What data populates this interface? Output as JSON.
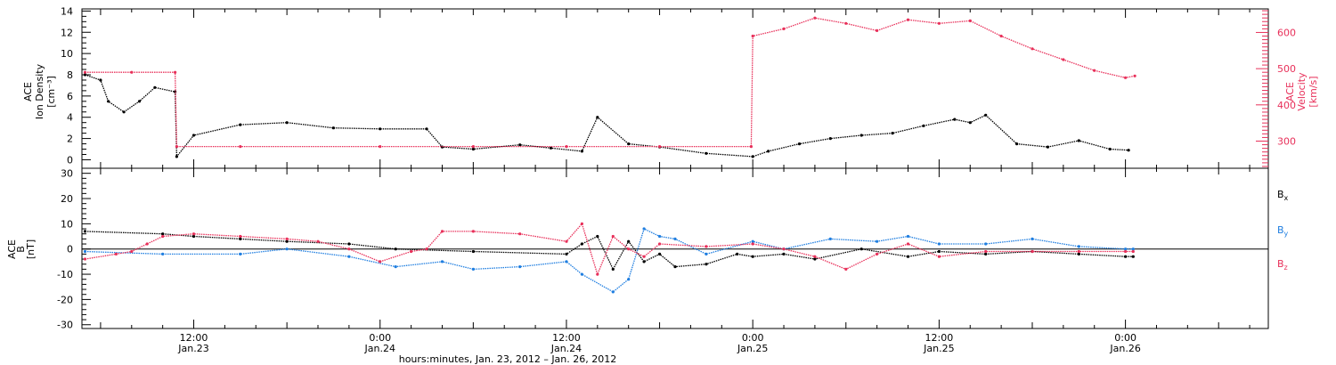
{
  "colors": {
    "black": "#000000",
    "red": "#e8305a",
    "blue": "#1f7ee0"
  },
  "xaxis": {
    "title": "hours:minutes, Jan. 23, 2012 – Jan. 26, 2012",
    "ticks": [
      {
        "t": 12,
        "time": "12:00",
        "date": "Jan.23"
      },
      {
        "t": 24,
        "time": "0:00",
        "date": "Jan.24"
      },
      {
        "t": 36,
        "time": "12:00",
        "date": "Jan.24"
      },
      {
        "t": 48,
        "time": "0:00",
        "date": "Jan.25"
      },
      {
        "t": 60,
        "time": "12:00",
        "date": "Jan.25"
      },
      {
        "t": 72,
        "time": "0:00",
        "date": "Jan.26"
      }
    ]
  },
  "chart_data": [
    {
      "type": "scatter",
      "ylabel_left": [
        "ACE",
        "Ion Density",
        "[cm⁻³]"
      ],
      "ylabel_right": [
        "ACE",
        "Velocity",
        "[km/s]"
      ],
      "xlim_hours": [
        4.8,
        81.2
      ],
      "ylim_left": [
        -0.8,
        14.2
      ],
      "ylim_right": [
        225,
        665
      ],
      "yticks_left": [
        0,
        2,
        4,
        6,
        8,
        10,
        12,
        14
      ],
      "yticks_right": [
        300,
        400,
        500,
        600
      ],
      "series": [
        {
          "quantity": "density",
          "color": "#000000",
          "axis": "left",
          "points": [
            [
              5,
              8
            ],
            [
              6,
              7.5
            ],
            [
              6.5,
              5.5
            ],
            [
              7.5,
              4.5
            ],
            [
              8.5,
              5.5
            ],
            [
              9.5,
              6.8
            ],
            [
              10.8,
              6.4
            ],
            [
              10.9,
              0.3
            ],
            [
              12,
              2.3
            ],
            [
              15,
              3.3
            ],
            [
              18,
              3.5
            ],
            [
              21,
              3.0
            ],
            [
              24,
              2.9
            ],
            [
              27,
              2.9
            ],
            [
              28,
              1.2
            ],
            [
              30,
              1.0
            ],
            [
              33,
              1.4
            ],
            [
              35,
              1.1
            ],
            [
              37,
              0.8
            ],
            [
              38,
              4.0
            ],
            [
              40,
              1.5
            ],
            [
              42,
              1.2
            ],
            [
              45,
              0.6
            ],
            [
              48,
              0.3
            ],
            [
              49,
              0.8
            ],
            [
              51,
              1.5
            ],
            [
              53,
              2.0
            ],
            [
              55,
              2.3
            ],
            [
              57,
              2.5
            ],
            [
              59,
              3.2
            ],
            [
              61,
              3.8
            ],
            [
              62,
              3.5
            ],
            [
              63,
              4.2
            ],
            [
              65,
              1.5
            ],
            [
              67,
              1.2
            ],
            [
              69,
              1.8
            ],
            [
              71,
              1.0
            ],
            [
              72.2,
              0.9
            ]
          ]
        },
        {
          "quantity": "velocity",
          "color": "#e8305a",
          "axis": "right",
          "points": [
            [
              5,
              490
            ],
            [
              8,
              490
            ],
            [
              10.8,
              490
            ],
            [
              10.9,
              285
            ],
            [
              15,
              285
            ],
            [
              24,
              285
            ],
            [
              30,
              285
            ],
            [
              36,
              285
            ],
            [
              42,
              285
            ],
            [
              47.9,
              285
            ],
            [
              48,
              590
            ],
            [
              50,
              610
            ],
            [
              52,
              640
            ],
            [
              54,
              625
            ],
            [
              56,
              605
            ],
            [
              58,
              635
            ],
            [
              60,
              625
            ],
            [
              62,
              632
            ],
            [
              64,
              590
            ],
            [
              66,
              555
            ],
            [
              68,
              525
            ],
            [
              70,
              495
            ],
            [
              72,
              475
            ],
            [
              72.6,
              480
            ]
          ]
        }
      ]
    },
    {
      "type": "scatter",
      "ylabel_left": [
        "ACE",
        "B",
        "[nT]"
      ],
      "xlim_hours": [
        4.8,
        81.2
      ],
      "ylim": [
        -31.5,
        32
      ],
      "yticks": [
        -30,
        -20,
        -10,
        0,
        10,
        20,
        30
      ],
      "zero_line": true,
      "series": [
        {
          "name": "Bx",
          "color": "#000000",
          "points": [
            [
              5,
              7
            ],
            [
              10,
              6
            ],
            [
              12,
              5
            ],
            [
              15,
              4
            ],
            [
              18,
              3
            ],
            [
              22,
              2
            ],
            [
              25,
              0
            ],
            [
              30,
              -1
            ],
            [
              36,
              -2
            ],
            [
              37,
              2
            ],
            [
              38,
              5
            ],
            [
              39,
              -8
            ],
            [
              40,
              3
            ],
            [
              41,
              -5
            ],
            [
              42,
              -2
            ],
            [
              43,
              -7
            ],
            [
              45,
              -6
            ],
            [
              47,
              -2
            ],
            [
              48,
              -3
            ],
            [
              50,
              -2
            ],
            [
              52,
              -4
            ],
            [
              55,
              0
            ],
            [
              58,
              -3
            ],
            [
              60,
              -1
            ],
            [
              63,
              -2
            ],
            [
              66,
              -1
            ],
            [
              69,
              -2
            ],
            [
              72,
              -3
            ],
            [
              72.5,
              -3
            ]
          ]
        },
        {
          "name": "By",
          "color": "#1f7ee0",
          "points": [
            [
              5,
              -1
            ],
            [
              10,
              -2
            ],
            [
              15,
              -2
            ],
            [
              18,
              0
            ],
            [
              22,
              -3
            ],
            [
              25,
              -7
            ],
            [
              28,
              -5
            ],
            [
              30,
              -8
            ],
            [
              33,
              -7
            ],
            [
              36,
              -5
            ],
            [
              37,
              -10
            ],
            [
              39,
              -17
            ],
            [
              40,
              -12
            ],
            [
              41,
              8
            ],
            [
              42,
              5
            ],
            [
              43,
              4
            ],
            [
              45,
              -2
            ],
            [
              48,
              3
            ],
            [
              50,
              0
            ],
            [
              53,
              4
            ],
            [
              56,
              3
            ],
            [
              58,
              5
            ],
            [
              60,
              2
            ],
            [
              63,
              2
            ],
            [
              66,
              4
            ],
            [
              69,
              1
            ],
            [
              72,
              0
            ],
            [
              72.5,
              0
            ]
          ]
        },
        {
          "name": "Bz",
          "color": "#e8305a",
          "points": [
            [
              5,
              -4
            ],
            [
              7,
              -2
            ],
            [
              8,
              -1
            ],
            [
              9,
              2
            ],
            [
              10,
              5
            ],
            [
              12,
              6
            ],
            [
              15,
              5
            ],
            [
              18,
              4
            ],
            [
              20,
              3
            ],
            [
              22,
              0
            ],
            [
              24,
              -5
            ],
            [
              26,
              -1
            ],
            [
              27,
              0
            ],
            [
              28,
              7
            ],
            [
              30,
              7
            ],
            [
              33,
              6
            ],
            [
              36,
              3
            ],
            [
              37,
              10
            ],
            [
              38,
              -10
            ],
            [
              39,
              5
            ],
            [
              40,
              0
            ],
            [
              41,
              -3
            ],
            [
              42,
              2
            ],
            [
              45,
              1
            ],
            [
              48,
              2
            ],
            [
              50,
              0
            ],
            [
              52,
              -3
            ],
            [
              54,
              -8
            ],
            [
              56,
              -2
            ],
            [
              58,
              2
            ],
            [
              60,
              -3
            ],
            [
              63,
              -1
            ],
            [
              66,
              -1
            ],
            [
              69,
              -1
            ],
            [
              72,
              -1
            ],
            [
              72.5,
              -1
            ]
          ]
        }
      ],
      "legend": [
        {
          "name": "Bx",
          "base": "B",
          "sub": "x",
          "color": "#000000"
        },
        {
          "name": "By",
          "base": "B",
          "sub": "y",
          "color": "#1f7ee0"
        },
        {
          "name": "Bz",
          "base": "B",
          "sub": "z",
          "color": "#e8305a"
        }
      ]
    }
  ]
}
